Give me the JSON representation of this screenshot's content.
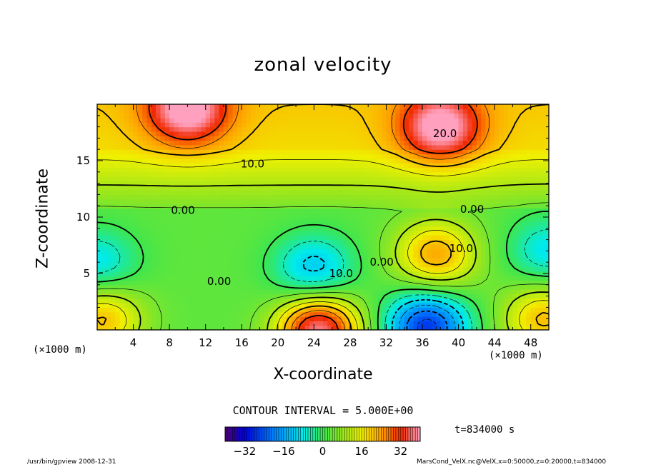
{
  "chart_data": {
    "type": "heatmap",
    "title": "zonal velocity",
    "xlabel": "X-coordinate",
    "ylabel": "Z-coordinate",
    "x_unit": "(×1000 m)",
    "xlim": [
      0,
      50
    ],
    "ylim": [
      0,
      20
    ],
    "x_ticks": [
      4,
      8,
      12,
      16,
      20,
      24,
      28,
      32,
      36,
      40,
      44,
      48
    ],
    "y_ticks": [
      5,
      10,
      15
    ],
    "contour_labels": [
      {
        "text": "20.0",
        "x": 38.5,
        "y": 17.4
      },
      {
        "text": "10.0",
        "x": 17.2,
        "y": 14.7
      },
      {
        "text": "0.00",
        "x": 9.5,
        "y": 10.6
      },
      {
        "text": "0.00",
        "x": 41.5,
        "y": 10.7
      },
      {
        "text": "10.0",
        "x": 40.3,
        "y": 7.2
      },
      {
        "text": "0.00",
        "x": 31.5,
        "y": 6.0
      },
      {
        "text": "10.0",
        "x": 27.0,
        "y": 5.0
      },
      {
        "text": "0.00",
        "x": 13.5,
        "y": 4.3
      }
    ],
    "contour_interval_text": "CONTOUR INTERVAL = 5.000E+00",
    "colorbar": {
      "min": -40,
      "max": 40,
      "tick_values": [
        -32,
        -16,
        0,
        16,
        32
      ],
      "tick_labels": [
        "−32",
        "−16",
        "0",
        "16",
        "32"
      ]
    },
    "field_features": [
      {
        "kind": "max",
        "x": 24.5,
        "y": 0.0,
        "value": 35
      },
      {
        "kind": "min",
        "x": 36.5,
        "y": 0.3,
        "value": -30
      },
      {
        "kind": "min",
        "x": 24.0,
        "y": 5.5,
        "value": -15
      },
      {
        "kind": "max",
        "x": 37.5,
        "y": 6.7,
        "value": 20
      },
      {
        "kind": "min",
        "x": 0.0,
        "y": 6.0,
        "value": -12
      },
      {
        "kind": "min",
        "x": 50.0,
        "y": 7.0,
        "value": -12
      },
      {
        "kind": "max",
        "x": 10.0,
        "y": 19.5,
        "value": 25
      },
      {
        "kind": "max",
        "x": 38.0,
        "y": 18.0,
        "value": 25
      },
      {
        "kind": "max",
        "x": 0.5,
        "y": 1.0,
        "value": 18
      },
      {
        "kind": "max",
        "x": 49.5,
        "y": 1.0,
        "value": 18
      }
    ]
  },
  "time_label": "t=834000 s",
  "footer_left": "/usr/bin/gpview   2008-12-31",
  "footer_right": "MarsCond_VelX.nc@VelX,x=0:50000,z=0:20000,t=834000"
}
